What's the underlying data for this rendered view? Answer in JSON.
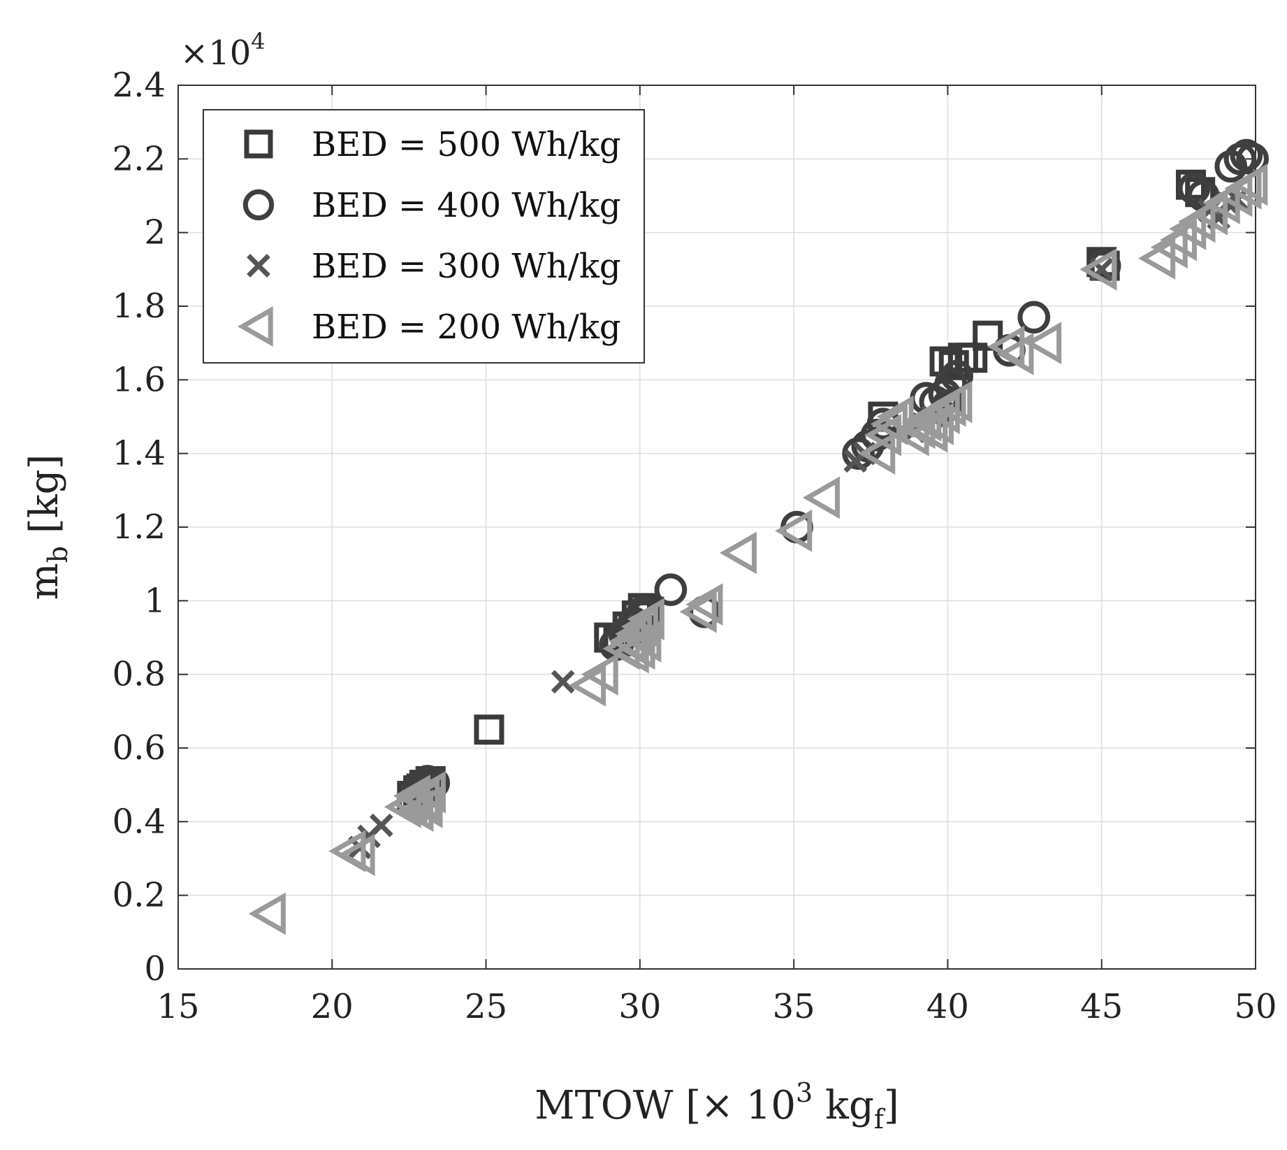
{
  "chart_data": {
    "type": "scatter",
    "xlabel": {
      "main": "MTOW [× 10",
      "sup": "3",
      "unit": " kg",
      "sub": "f",
      "close": "]"
    },
    "ylabel": {
      "main": "m",
      "sub": "b",
      "unit": " [kg]"
    },
    "y_multiplier": {
      "prefix": "×10",
      "exp": "4"
    },
    "xlim": [
      15,
      50
    ],
    "ylim": [
      0,
      24000
    ],
    "x_ticks": [
      15,
      20,
      25,
      30,
      35,
      40,
      45,
      50
    ],
    "x_tick_labels": [
      "15",
      "20",
      "25",
      "30",
      "35",
      "40",
      "45",
      "50"
    ],
    "y_ticks": [
      0,
      2000,
      4000,
      6000,
      8000,
      10000,
      12000,
      14000,
      16000,
      18000,
      20000,
      22000,
      24000
    ],
    "y_tick_labels": [
      "0",
      "0.2",
      "0.4",
      "0.6",
      "0.8",
      "1",
      "1.2",
      "1.4",
      "1.6",
      "1.8",
      "2",
      "2.2",
      "2.4"
    ],
    "grid": true,
    "legend_position": "top-left",
    "series": [
      {
        "name": "BED = 500 Wh/kg",
        "marker": "square",
        "color": "#3a3a3a",
        "points": [
          [
            22.6,
            4700
          ],
          [
            22.8,
            4850
          ],
          [
            23.0,
            5000
          ],
          [
            23.2,
            5100
          ],
          [
            22.9,
            4900
          ],
          [
            23.1,
            4800
          ],
          [
            25.1,
            6500
          ],
          [
            29.0,
            9000
          ],
          [
            29.3,
            8900
          ],
          [
            29.6,
            9300
          ],
          [
            29.9,
            9600
          ],
          [
            30.1,
            9800
          ],
          [
            30.3,
            9700
          ],
          [
            30.0,
            9200
          ],
          [
            37.9,
            15000
          ],
          [
            39.9,
            16500
          ],
          [
            40.2,
            16400
          ],
          [
            40.5,
            16600
          ],
          [
            40.8,
            16600
          ],
          [
            41.3,
            17200
          ],
          [
            45.0,
            19200
          ],
          [
            45.1,
            19100
          ],
          [
            47.9,
            21300
          ],
          [
            48.2,
            21100
          ]
        ]
      },
      {
        "name": "BED = 400 Wh/kg",
        "marker": "circle",
        "color": "#3f3f3f",
        "points": [
          [
            22.8,
            4900
          ],
          [
            23.0,
            5000
          ],
          [
            23.3,
            5050
          ],
          [
            23.1,
            5100
          ],
          [
            22.9,
            4950
          ],
          [
            29.2,
            8800
          ],
          [
            29.5,
            9100
          ],
          [
            29.8,
            9400
          ],
          [
            30.1,
            9700
          ],
          [
            30.2,
            9600
          ],
          [
            31.0,
            10300
          ],
          [
            32.1,
            9700
          ],
          [
            35.1,
            12000
          ],
          [
            37.1,
            14000
          ],
          [
            37.4,
            14200
          ],
          [
            37.7,
            14500
          ],
          [
            37.9,
            14800
          ],
          [
            39.3,
            15500
          ],
          [
            39.6,
            15400
          ],
          [
            39.9,
            15600
          ],
          [
            40.1,
            15900
          ],
          [
            40.3,
            16100
          ],
          [
            40.0,
            15300
          ],
          [
            42.8,
            17700
          ],
          [
            42.0,
            16800
          ],
          [
            45.1,
            19100
          ],
          [
            48.0,
            21200
          ],
          [
            48.3,
            21000
          ],
          [
            49.2,
            21800
          ],
          [
            49.5,
            22000
          ],
          [
            49.7,
            22100
          ],
          [
            49.9,
            22000
          ]
        ]
      },
      {
        "name": "BED = 300 Wh/kg",
        "marker": "x",
        "color": "#555555",
        "points": [
          [
            20.9,
            3300
          ],
          [
            21.2,
            3600
          ],
          [
            21.6,
            3900
          ],
          [
            27.5,
            7800
          ],
          [
            30.0,
            9300
          ],
          [
            30.3,
            9100
          ],
          [
            37.0,
            13800
          ],
          [
            37.3,
            14000
          ],
          [
            38.9,
            14600
          ],
          [
            39.2,
            14800
          ],
          [
            39.5,
            15000
          ],
          [
            45.0,
            19000
          ],
          [
            48.5,
            20600
          ],
          [
            48.8,
            20400
          ],
          [
            49.1,
            20800
          ],
          [
            49.4,
            20900
          ]
        ]
      },
      {
        "name": "BED = 200 Wh/kg",
        "marker": "triangle-left",
        "color": "#9a9a9a",
        "points": [
          [
            18.0,
            1500
          ],
          [
            20.6,
            3200
          ],
          [
            20.9,
            3100
          ],
          [
            22.4,
            4400
          ],
          [
            22.6,
            4500
          ],
          [
            22.8,
            4300
          ],
          [
            23.0,
            4600
          ],
          [
            23.2,
            4800
          ],
          [
            22.7,
            4700
          ],
          [
            23.1,
            4400
          ],
          [
            28.4,
            7700
          ],
          [
            28.8,
            8000
          ],
          [
            29.5,
            8700
          ],
          [
            29.7,
            8900
          ],
          [
            29.9,
            9100
          ],
          [
            30.1,
            9300
          ],
          [
            30.3,
            9500
          ],
          [
            30.0,
            8700
          ],
          [
            30.2,
            8900
          ],
          [
            29.8,
            8600
          ],
          [
            32.0,
            9700
          ],
          [
            32.2,
            9900
          ],
          [
            33.3,
            11300
          ],
          [
            35.1,
            11900
          ],
          [
            36.0,
            12800
          ],
          [
            37.8,
            14000
          ],
          [
            38.0,
            14500
          ],
          [
            38.2,
            14800
          ],
          [
            38.4,
            15000
          ],
          [
            38.9,
            14500
          ],
          [
            39.1,
            14700
          ],
          [
            39.3,
            14900
          ],
          [
            39.5,
            14600
          ],
          [
            39.7,
            14800
          ],
          [
            39.9,
            15100
          ],
          [
            40.1,
            15300
          ],
          [
            40.3,
            15400
          ],
          [
            42.0,
            16900
          ],
          [
            42.3,
            16700
          ],
          [
            43.2,
            17000
          ],
          [
            45.0,
            19000
          ],
          [
            46.9,
            19300
          ],
          [
            47.3,
            19600
          ],
          [
            47.6,
            19800
          ],
          [
            47.9,
            20100
          ],
          [
            48.2,
            20300
          ],
          [
            48.6,
            20500
          ],
          [
            49.0,
            20800
          ],
          [
            49.4,
            21000
          ],
          [
            49.7,
            21200
          ],
          [
            49.9,
            21300
          ]
        ]
      }
    ]
  }
}
